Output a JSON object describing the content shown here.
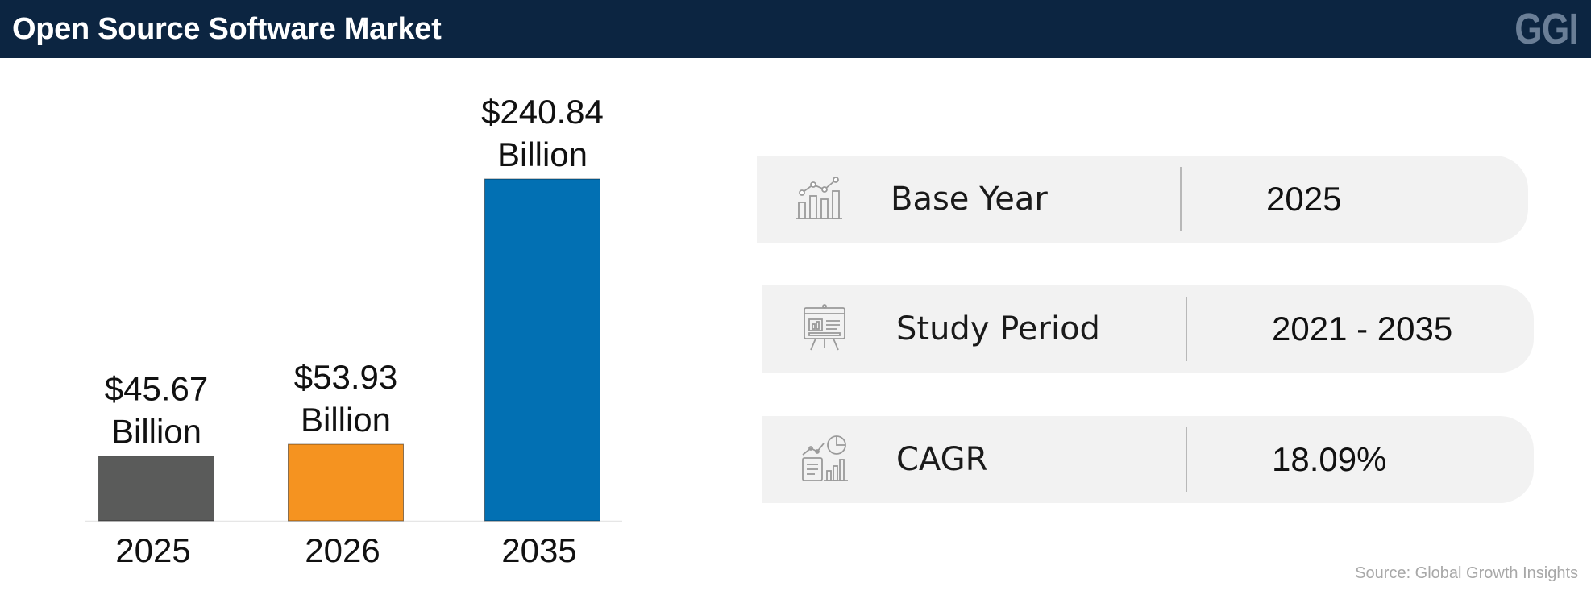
{
  "header": {
    "title": "Open Source Software Market",
    "logo_text": "GGI"
  },
  "chart_data": {
    "type": "bar",
    "categories": [
      "2025",
      "2026",
      "2035"
    ],
    "values": [
      45.67,
      53.93,
      240.84
    ],
    "value_labels": [
      [
        "$45.67",
        "Billion"
      ],
      [
        "$53.93",
        "Billion"
      ],
      [
        "$240.84",
        "Billion"
      ]
    ],
    "colors": [
      "#5a5b5a",
      "#f59320",
      "#0270b3"
    ],
    "title": "",
    "xlabel": "",
    "ylabel": "",
    "grid": false,
    "legend": "none"
  },
  "stats": [
    {
      "icon": "analytics-chart-icon",
      "label": "Base Year",
      "value": "2025"
    },
    {
      "icon": "presentation-board-icon",
      "label": "Study Period",
      "value": "2021 - 2035"
    },
    {
      "icon": "growth-report-icon",
      "label": "CAGR",
      "value": "18.09%"
    }
  ],
  "source": "Source: Global Growth Insights"
}
